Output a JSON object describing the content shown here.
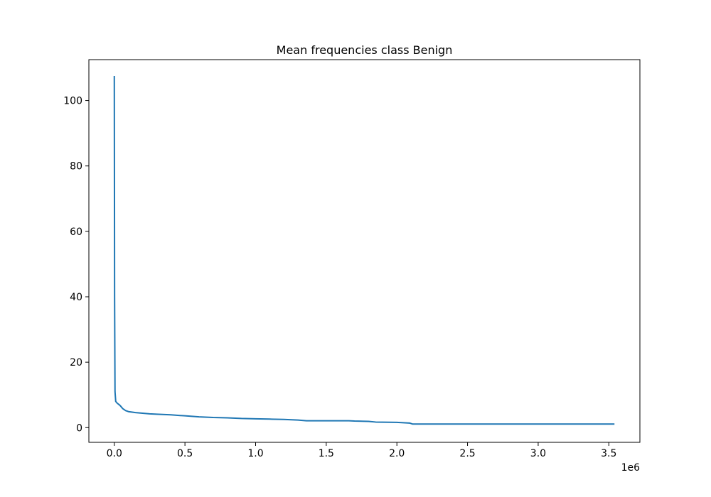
{
  "chart_data": {
    "type": "line",
    "title": "Mean frequencies class Benign",
    "xlabel": "",
    "ylabel": "",
    "x_offset_text": "1e6",
    "xlim": [
      -180000,
      3720000
    ],
    "ylim": [
      -4.5,
      112.5
    ],
    "x_ticks": [
      0,
      500000,
      1000000,
      1500000,
      2000000,
      2500000,
      3000000,
      3500000
    ],
    "x_tick_labels": [
      "0.0",
      "0.5",
      "1.0",
      "1.5",
      "2.0",
      "2.5",
      "3.0",
      "3.5"
    ],
    "y_ticks": [
      0,
      20,
      40,
      60,
      80,
      100
    ],
    "y_tick_labels": [
      "0",
      "20",
      "40",
      "60",
      "80",
      "100"
    ],
    "grid": false,
    "series": [
      {
        "color": "#1f77b4",
        "x": [
          0,
          2000,
          5000,
          10000,
          20000,
          40000,
          60000,
          80000,
          100000,
          150000,
          200000,
          250000,
          300000,
          400000,
          500000,
          600000,
          700000,
          800000,
          900000,
          1000000,
          1100000,
          1200000,
          1300000,
          1360000,
          1500000,
          1660000,
          1700000,
          1800000,
          1850000,
          2000000,
          2090000,
          2110000,
          2500000,
          3000000,
          3540000
        ],
        "y": [
          107.5,
          40,
          11,
          8,
          7.5,
          6.8,
          5.8,
          5.2,
          4.9,
          4.6,
          4.4,
          4.2,
          4.1,
          3.9,
          3.6,
          3.3,
          3.1,
          3.0,
          2.8,
          2.7,
          2.6,
          2.5,
          2.3,
          2.1,
          2.1,
          2.1,
          2.0,
          1.9,
          1.7,
          1.6,
          1.4,
          1.1,
          1.1,
          1.1,
          1.1
        ]
      }
    ]
  }
}
